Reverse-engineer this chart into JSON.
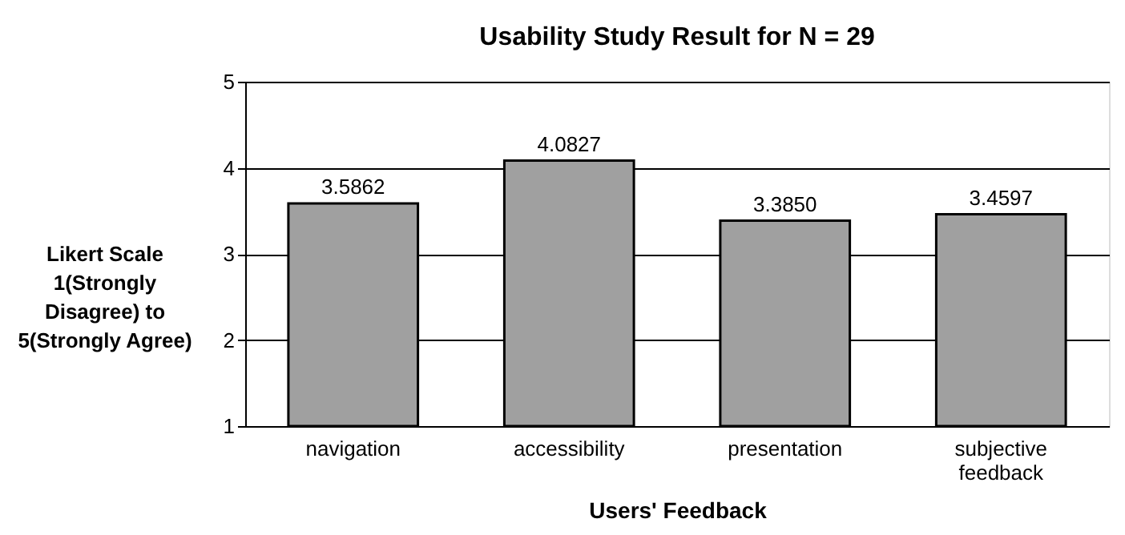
{
  "chart_data": {
    "type": "bar",
    "title": "Usability Study Result for N = 29",
    "xlabel": "Users' Feedback",
    "ylabel": "Likert Scale 1(Strongly Disagree) to 5(Strongly Agree)",
    "categories": [
      "navigation",
      "accessibility",
      "presentation",
      "subjective feedback"
    ],
    "values": [
      3.5862,
      4.0827,
      3.385,
      3.4597
    ],
    "value_labels": [
      "3.5862",
      "4.0827",
      "3.3850",
      "3.4597"
    ],
    "color": "#a0a0a0",
    "ylim": [
      1,
      5
    ],
    "yticks": [
      1,
      2,
      3,
      4,
      5
    ],
    "grid": "y"
  }
}
